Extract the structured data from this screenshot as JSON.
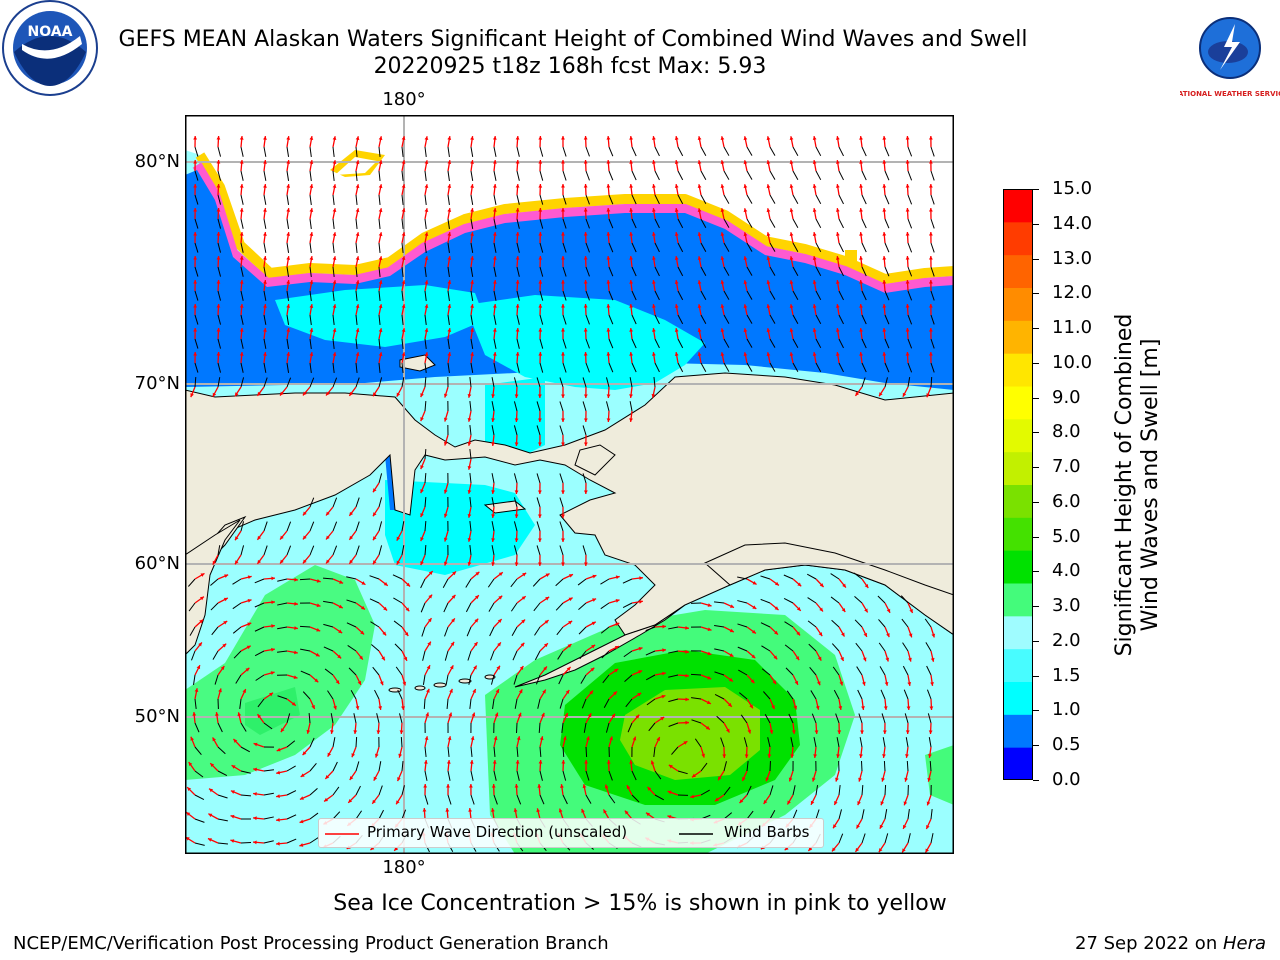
{
  "header": {
    "title_line1": "GEFS MEAN Alaskan Waters Significant Height of Combined Wind Waves and Swell",
    "title_line2": "20220925 t18z 168h fcst   Max: 5.93"
  },
  "logos": {
    "left": {
      "icon": "noaa-logo",
      "text": "NOAA"
    },
    "right": {
      "icon": "nws-logo",
      "text": "NATIONAL WEATHER SERVICE"
    }
  },
  "map": {
    "lon_label_top": "180°",
    "lon_label_bottom": "180°",
    "lat_labels": [
      "80°N",
      "70°N",
      "60°N",
      "50°N"
    ],
    "colors": {
      "land": "#efecdc",
      "grid": "#b3b3b3",
      "ocean_low": "#9bffff",
      "wave_arrow": "#ff0000",
      "barb": "#000000"
    }
  },
  "legend": {
    "wave_label": "Primary Wave Direction (unscaled)",
    "barb_label": "Wind Barbs"
  },
  "colorbar": {
    "title_line1": "Significant Height of Combined",
    "title_line2": "Wind Waves and Swell [m]",
    "ticks": [
      "15.0",
      "14.0",
      "13.0",
      "12.0",
      "11.0",
      "10.0",
      "9.0",
      "8.0",
      "7.0",
      "6.0",
      "5.0",
      "4.0",
      "3.0",
      "2.0",
      "1.5",
      "1.0",
      "0.5",
      "0.0"
    ],
    "colors": [
      "#0000ff",
      "#0078ff",
      "#00ffff",
      "#48fcff",
      "#9ffcff",
      "#44fb7b",
      "#00e100",
      "#44e100",
      "#7ae100",
      "#c2f000",
      "#e3fa00",
      "#ffff00",
      "#ffe600",
      "#ffb400",
      "#ff8c00",
      "#ff6400",
      "#ff3c00",
      "#ff0000"
    ]
  },
  "footer": {
    "sea_ice_note": "Sea Ice Concentration > 15% is shown in pink to yellow",
    "left": "NCEP/EMC/Verification Post Processing Product Generation Branch",
    "right_date": "27 Sep 2022 on ",
    "right_host": "Hera"
  }
}
